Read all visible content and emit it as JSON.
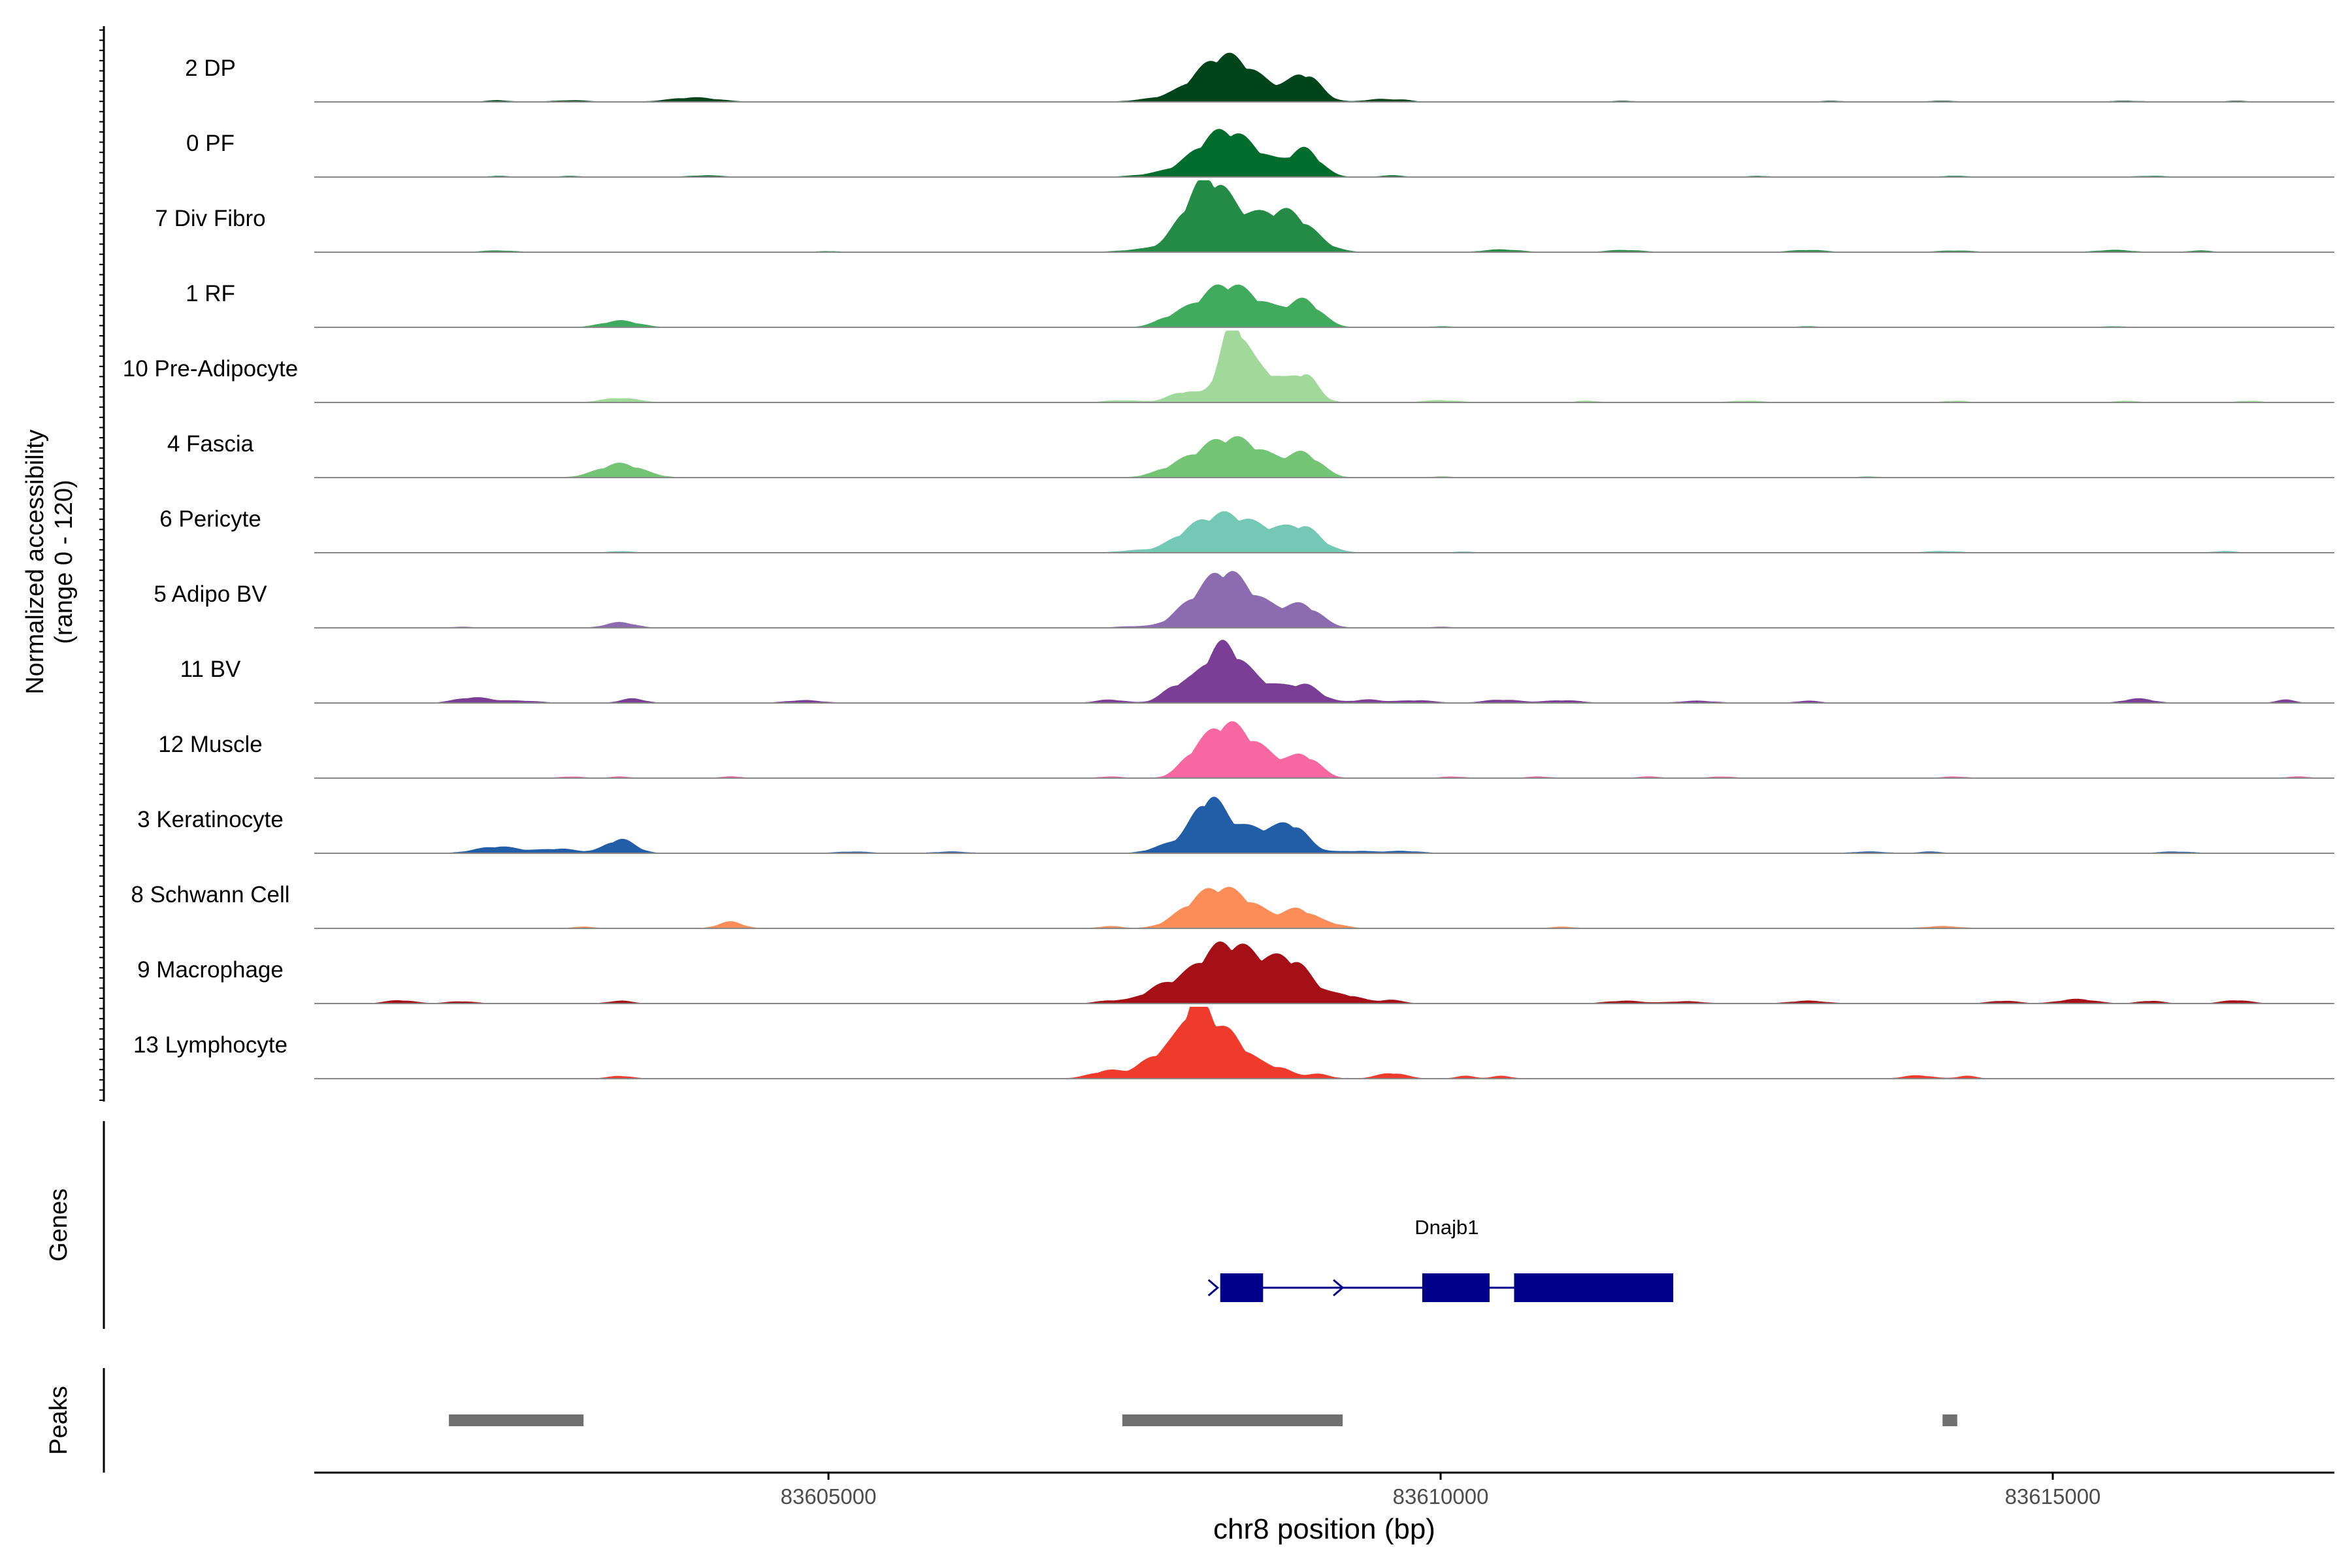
{
  "chart_data": {
    "type": "area",
    "ylabel_line1": "Normalized accessibility",
    "ylabel_line2": "(range 0 - 120)",
    "xlabel": "chr8 position (bp)",
    "xlim": [
      83600800,
      83617300
    ],
    "ylim": [
      0,
      120
    ],
    "x_ticks": [
      83605000,
      83610000,
      83615000
    ],
    "x_tick_labels": [
      "83605000",
      "83610000",
      "83615000"
    ],
    "grid": false,
    "tracks": [
      {
        "name": "2 DP",
        "color": "#00441b",
        "peaks": [
          [
            83608200,
            63,
            220
          ],
          [
            83608900,
            42,
            120
          ],
          [
            83608450,
            28,
            280
          ],
          [
            83607700,
            5,
            200
          ],
          [
            83603900,
            8,
            200
          ],
          [
            83609500,
            5,
            120
          ],
          [
            83602900,
            3,
            150
          ],
          [
            83602300,
            3,
            100
          ],
          [
            83609700,
            3,
            80
          ],
          [
            83614100,
            2,
            150
          ],
          [
            83615600,
            2,
            150
          ],
          [
            83616500,
            2,
            100
          ],
          [
            83611500,
            2,
            100
          ],
          [
            83613200,
            2,
            100
          ]
        ]
      },
      {
        "name": "0 PF",
        "color": "#006d2c",
        "peaks": [
          [
            83608200,
            63,
            220
          ],
          [
            83608900,
            42,
            120
          ],
          [
            83608450,
            28,
            280
          ],
          [
            83607700,
            5,
            200
          ],
          [
            83604000,
            3,
            150
          ],
          [
            83609600,
            3,
            100
          ],
          [
            83602300,
            2,
            100
          ],
          [
            83602900,
            2,
            100
          ],
          [
            83614200,
            2,
            150
          ],
          [
            83615800,
            2,
            150
          ],
          [
            83612600,
            2,
            100
          ]
        ]
      },
      {
        "name": "7 Div Fibro",
        "color": "#238b45",
        "peaks": [
          [
            83608100,
            90,
            150
          ],
          [
            83608400,
            60,
            300
          ],
          [
            83608800,
            45,
            180
          ],
          [
            83607900,
            25,
            120
          ],
          [
            83607600,
            5,
            200
          ],
          [
            83610500,
            5,
            150
          ],
          [
            83611500,
            4,
            150
          ],
          [
            83613000,
            4,
            150
          ],
          [
            83614200,
            3,
            150
          ],
          [
            83615500,
            4,
            150
          ],
          [
            83616200,
            3,
            100
          ],
          [
            83602300,
            3,
            150
          ],
          [
            83605000,
            2,
            100
          ]
        ]
      },
      {
        "name": "1 RF",
        "color": "#41ab5d",
        "peaks": [
          [
            83608200,
            60,
            220
          ],
          [
            83608900,
            40,
            130
          ],
          [
            83608500,
            30,
            250
          ],
          [
            83607800,
            12,
            130
          ],
          [
            83603300,
            12,
            150
          ],
          [
            83610000,
            2,
            100
          ],
          [
            83613000,
            2,
            100
          ],
          [
            83615500,
            2,
            100
          ]
        ]
      },
      {
        "name": "10 Pre-Adipocyte",
        "color": "#a1d99b",
        "peaks": [
          [
            83608300,
            105,
            100
          ],
          [
            83608500,
            60,
            220
          ],
          [
            83608900,
            40,
            100
          ],
          [
            83607900,
            18,
            120
          ],
          [
            83603300,
            8,
            150
          ],
          [
            83607400,
            4,
            150
          ],
          [
            83610000,
            4,
            150
          ],
          [
            83611200,
            3,
            100
          ],
          [
            83612500,
            3,
            150
          ],
          [
            83614200,
            3,
            100
          ],
          [
            83615600,
            3,
            100
          ],
          [
            83616600,
            3,
            100
          ]
        ]
      },
      {
        "name": "4 Fascia",
        "color": "#74c476",
        "peaks": [
          [
            83608200,
            55,
            250
          ],
          [
            83608900,
            35,
            130
          ],
          [
            83608500,
            28,
            250
          ],
          [
            83603300,
            25,
            180
          ],
          [
            83607800,
            8,
            150
          ],
          [
            83610000,
            2,
            100
          ],
          [
            83613500,
            2,
            100
          ]
        ]
      },
      {
        "name": "6 Pericyte",
        "color": "#74c9b4",
        "peaks": [
          [
            83608200,
            60,
            220
          ],
          [
            83608650,
            35,
            250
          ],
          [
            83608900,
            25,
            130
          ],
          [
            83607900,
            15,
            150
          ],
          [
            83607500,
            4,
            150
          ],
          [
            83603300,
            3,
            100
          ],
          [
            83614100,
            3,
            150
          ],
          [
            83616400,
            3,
            100
          ],
          [
            83610200,
            2,
            100
          ]
        ]
      },
      {
        "name": "5 Adipo BV",
        "color": "#8c6bb1",
        "peaks": [
          [
            83608200,
            80,
            180
          ],
          [
            83608500,
            40,
            250
          ],
          [
            83608900,
            30,
            130
          ],
          [
            83607900,
            20,
            130
          ],
          [
            83603300,
            10,
            120
          ],
          [
            83607500,
            3,
            150
          ],
          [
            83610000,
            2,
            100
          ],
          [
            83602000,
            2,
            100
          ]
        ]
      },
      {
        "name": "11 BV",
        "color": "#7a3e96",
        "peaks": [
          [
            83608200,
            80,
            150
          ],
          [
            83608450,
            40,
            250
          ],
          [
            83608900,
            25,
            130
          ],
          [
            83607850,
            28,
            120
          ],
          [
            83602100,
            10,
            150
          ],
          [
            83602500,
            4,
            150
          ],
          [
            83603400,
            8,
            100
          ],
          [
            83604800,
            5,
            150
          ],
          [
            83607300,
            6,
            120
          ],
          [
            83609400,
            6,
            120
          ],
          [
            83609800,
            5,
            150
          ],
          [
            83610500,
            6,
            150
          ],
          [
            83611000,
            5,
            150
          ],
          [
            83612100,
            4,
            150
          ],
          [
            83613000,
            4,
            100
          ],
          [
            83615700,
            8,
            120
          ],
          [
            83616900,
            6,
            80
          ]
        ]
      },
      {
        "name": "12 Muscle",
        "color": "#f768a1",
        "peaks": [
          [
            83608200,
            80,
            180
          ],
          [
            83608500,
            45,
            200
          ],
          [
            83608900,
            35,
            120
          ],
          [
            83607950,
            15,
            100
          ],
          [
            83607300,
            3,
            100
          ],
          [
            83602900,
            3,
            100
          ],
          [
            83603300,
            3,
            80
          ],
          [
            83604200,
            3,
            100
          ],
          [
            83610100,
            3,
            100
          ],
          [
            83610800,
            3,
            100
          ],
          [
            83611700,
            3,
            100
          ],
          [
            83612300,
            3,
            100
          ],
          [
            83614200,
            3,
            100
          ],
          [
            83617000,
            3,
            100
          ]
        ]
      },
      {
        "name": "3 Keratinocyte",
        "color": "#225ea8",
        "peaks": [
          [
            83608100,
            80,
            130
          ],
          [
            83608450,
            45,
            250
          ],
          [
            83608800,
            35,
            120
          ],
          [
            83607800,
            15,
            150
          ],
          [
            83603300,
            25,
            120
          ],
          [
            83602300,
            12,
            180
          ],
          [
            83602800,
            8,
            150
          ],
          [
            83609300,
            4,
            150
          ],
          [
            83609700,
            4,
            150
          ],
          [
            83605200,
            3,
            150
          ],
          [
            83606000,
            3,
            150
          ],
          [
            83613500,
            3,
            150
          ],
          [
            83614000,
            3,
            100
          ],
          [
            83616000,
            3,
            150
          ]
        ]
      },
      {
        "name": "8 Schwann Cell",
        "color": "#fc8d59",
        "peaks": [
          [
            83608150,
            60,
            200
          ],
          [
            83608450,
            30,
            200
          ],
          [
            83608850,
            30,
            120
          ],
          [
            83609100,
            8,
            120
          ],
          [
            83607900,
            10,
            150
          ],
          [
            83604200,
            12,
            100
          ],
          [
            83607300,
            4,
            100
          ],
          [
            83603000,
            3,
            100
          ],
          [
            83614100,
            4,
            150
          ],
          [
            83611000,
            3,
            100
          ]
        ]
      },
      {
        "name": "9 Macrophage",
        "color": "#a50f15",
        "peaks": [
          [
            83608200,
            70,
            250
          ],
          [
            83608500,
            50,
            350
          ],
          [
            83608800,
            40,
            150
          ],
          [
            83607700,
            20,
            150
          ],
          [
            83607300,
            5,
            120
          ],
          [
            83609250,
            10,
            120
          ],
          [
            83609600,
            6,
            100
          ],
          [
            83601500,
            6,
            120
          ],
          [
            83602000,
            4,
            120
          ],
          [
            83603300,
            5,
            100
          ],
          [
            83611500,
            5,
            150
          ],
          [
            83612000,
            4,
            150
          ],
          [
            83613000,
            5,
            150
          ],
          [
            83614600,
            5,
            120
          ],
          [
            83615200,
            8,
            150
          ],
          [
            83615800,
            5,
            100
          ],
          [
            83616500,
            6,
            120
          ]
        ]
      },
      {
        "name": "13 Lymphocyte",
        "color": "#ef3b2c",
        "peaks": [
          [
            83608000,
            105,
            100
          ],
          [
            83608200,
            65,
            150
          ],
          [
            83607800,
            50,
            120
          ],
          [
            83608400,
            30,
            200
          ],
          [
            83607300,
            15,
            150
          ],
          [
            83607600,
            20,
            100
          ],
          [
            83608700,
            10,
            100
          ],
          [
            83609000,
            8,
            100
          ],
          [
            83609600,
            10,
            120
          ],
          [
            83610200,
            5,
            80
          ],
          [
            83610500,
            5,
            80
          ],
          [
            83603300,
            5,
            100
          ],
          [
            83613900,
            6,
            120
          ],
          [
            83614300,
            5,
            80
          ]
        ]
      }
    ],
    "genes_label": "Genes",
    "gene": {
      "name": "Dnajb1",
      "start": 83608200,
      "end": 83611900,
      "strand": "+",
      "exons": [
        [
          83608200,
          83608550
        ],
        [
          83609850,
          83610400
        ],
        [
          83610600,
          83611900
        ]
      ]
    },
    "peaks_label": "Peaks",
    "peak_regions": [
      [
        83601900,
        83603000
      ],
      [
        83607400,
        83609200
      ],
      [
        83614100,
        83614220
      ]
    ]
  }
}
